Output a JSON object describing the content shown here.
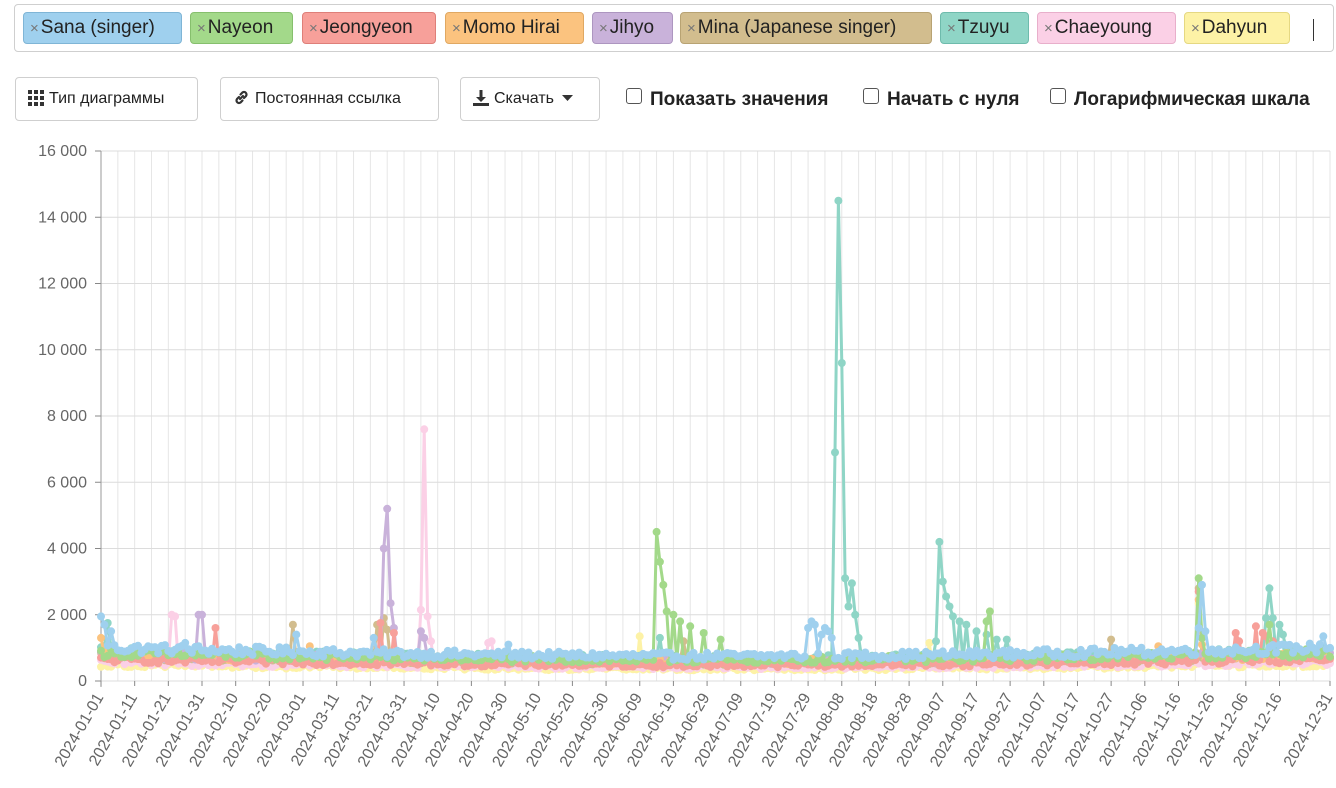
{
  "tags": [
    {
      "label": "Sana (singer)",
      "color": "#9fd0ee",
      "border": "#7fb5d6"
    },
    {
      "label": "Nayeon",
      "color": "#a3d98a",
      "border": "#86bf6d"
    },
    {
      "label": "Jeongyeon",
      "color": "#f7a09a",
      "border": "#de7f79"
    },
    {
      "label": "Momo Hirai",
      "color": "#fbc37f",
      "border": "#e0a862"
    },
    {
      "label": "Jihyo",
      "color": "#c9b2da",
      "border": "#ad96c0"
    },
    {
      "label": "Mina (Japanese singer)",
      "color": "#d2bd8e",
      "border": "#b8a373"
    },
    {
      "label": "Tzuyu",
      "color": "#8fd5c6",
      "border": "#6ebbac"
    },
    {
      "label": "Chaeyoung",
      "color": "#fbd0e6",
      "border": "#e8afcb"
    },
    {
      "label": "Dahyun",
      "color": "#fdf2a6",
      "border": "#e5d882"
    }
  ],
  "toolbar": {
    "chart_type": "Тип диаграммы",
    "permalink": "Постоянная ссылка",
    "download": "Скачать",
    "show_values": "Показать значения",
    "start_zero": "Начать с нуля",
    "log_scale": "Логарифмическая шкала"
  },
  "chart_data": {
    "type": "line",
    "ylim": [
      0,
      16000
    ],
    "yticks": [
      0,
      2000,
      4000,
      6000,
      8000,
      10000,
      12000,
      14000,
      16000
    ],
    "ytick_labels": [
      "0",
      "2 000",
      "4 000",
      "6 000",
      "8 000",
      "10 000",
      "12 000",
      "14 000",
      "16 000"
    ],
    "x_start": "2024-01-01",
    "x_end": "2024-12-31",
    "xtick_labels": [
      "2024-01-01",
      "2024-01-11",
      "2024-01-21",
      "2024-01-31",
      "2024-02-10",
      "2024-02-20",
      "2024-03-01",
      "2024-03-11",
      "2024-03-21",
      "2024-03-31",
      "2024-04-10",
      "2024-04-20",
      "2024-04-30",
      "2024-05-10",
      "2024-05-20",
      "2024-05-30",
      "2024-06-09",
      "2024-06-19",
      "2024-06-29",
      "2024-07-09",
      "2024-07-19",
      "2024-07-29",
      "2024-08-08",
      "2024-08-18",
      "2024-08-28",
      "2024-09-07",
      "2024-09-17",
      "2024-09-27",
      "2024-10-07",
      "2024-10-17",
      "2024-10-27",
      "2024-11-06",
      "2024-11-16",
      "2024-11-26",
      "2024-12-06",
      "2024-12-16",
      "2024-12-31"
    ],
    "series": [
      {
        "name": "Sana (singer)",
        "color": "#9fd0ee",
        "base": 1000,
        "peaks": [
          [
            "2024-01-01",
            1950
          ],
          [
            "2024-01-02",
            1700
          ],
          [
            "2024-01-04",
            1500
          ],
          [
            "2024-01-26",
            1150
          ],
          [
            "2024-02-28",
            1400
          ],
          [
            "2024-03-22",
            1300
          ],
          [
            "2024-05-01",
            1100
          ],
          [
            "2024-07-29",
            1600
          ],
          [
            "2024-07-30",
            1800
          ],
          [
            "2024-07-31",
            1700
          ],
          [
            "2024-08-02",
            1400
          ],
          [
            "2024-08-03",
            1600
          ],
          [
            "2024-08-04",
            1500
          ],
          [
            "2024-08-05",
            1300
          ],
          [
            "2024-11-22",
            1600
          ],
          [
            "2024-11-23",
            2900
          ],
          [
            "2024-11-24",
            1500
          ],
          [
            "2024-12-26",
            1000
          ],
          [
            "2024-12-29",
            1350
          ]
        ]
      },
      {
        "name": "Nayeon",
        "color": "#a3d98a",
        "base": 850,
        "peaks": [
          [
            "2024-06-14",
            4500
          ],
          [
            "2024-06-15",
            3600
          ],
          [
            "2024-06-16",
            2900
          ],
          [
            "2024-06-17",
            2100
          ],
          [
            "2024-06-19",
            2000
          ],
          [
            "2024-06-21",
            1800
          ],
          [
            "2024-06-24",
            1650
          ],
          [
            "2024-06-28",
            1450
          ],
          [
            "2024-07-03",
            1250
          ],
          [
            "2024-09-20",
            1800
          ],
          [
            "2024-09-21",
            2100
          ],
          [
            "2024-11-22",
            3100
          ],
          [
            "2024-11-23",
            1300
          ],
          [
            "2024-12-13",
            1700
          ]
        ]
      },
      {
        "name": "Jeongyeon",
        "color": "#f7a09a",
        "base": 650,
        "peaks": [
          [
            "2024-02-04",
            1600
          ],
          [
            "2024-03-24",
            1750
          ],
          [
            "2024-03-28",
            1450
          ],
          [
            "2024-11-22",
            2700
          ],
          [
            "2024-11-23",
            1300
          ],
          [
            "2024-12-03",
            1450
          ],
          [
            "2024-12-04",
            1200
          ],
          [
            "2024-12-09",
            1650
          ],
          [
            "2024-12-11",
            1450
          ],
          [
            "2024-12-12",
            1350
          ],
          [
            "2024-12-14",
            1200
          ]
        ]
      },
      {
        "name": "Momo Hirai",
        "color": "#fbc37f",
        "base": 780,
        "peaks": [
          [
            "2024-01-01",
            1300
          ],
          [
            "2024-03-03",
            1050
          ],
          [
            "2024-11-10",
            1050
          ],
          [
            "2024-11-22",
            2450
          ],
          [
            "2024-11-23",
            1100
          ]
        ]
      },
      {
        "name": "Jihyo",
        "color": "#c9b2da",
        "base": 800,
        "peaks": [
          [
            "2024-01-30",
            2000
          ],
          [
            "2024-01-31",
            2000
          ],
          [
            "2024-03-25",
            4000
          ],
          [
            "2024-03-26",
            5200
          ],
          [
            "2024-03-27",
            2350
          ],
          [
            "2024-03-28",
            1600
          ],
          [
            "2024-04-05",
            1500
          ],
          [
            "2024-04-06",
            1300
          ]
        ]
      },
      {
        "name": "Mina (Japanese singer)",
        "color": "#d2bd8e",
        "base": 760,
        "peaks": [
          [
            "2024-02-27",
            1700
          ],
          [
            "2024-03-25",
            1900
          ],
          [
            "2024-03-26",
            1550
          ],
          [
            "2024-03-23",
            1700
          ],
          [
            "2024-06-22",
            1200
          ],
          [
            "2024-10-27",
            1250
          ],
          [
            "2024-11-22",
            2800
          ]
        ]
      },
      {
        "name": "Tzuyu",
        "color": "#8fd5c6",
        "base": 900,
        "peaks": [
          [
            "2024-01-03",
            1750
          ],
          [
            "2024-06-15",
            1300
          ],
          [
            "2024-08-06",
            6900
          ],
          [
            "2024-08-07",
            14500
          ],
          [
            "2024-08-08",
            9600
          ],
          [
            "2024-08-09",
            3100
          ],
          [
            "2024-08-10",
            2250
          ],
          [
            "2024-08-11",
            2950
          ],
          [
            "2024-08-12",
            2000
          ],
          [
            "2024-08-13",
            1300
          ],
          [
            "2024-09-05",
            1200
          ],
          [
            "2024-09-06",
            4200
          ],
          [
            "2024-09-07",
            3000
          ],
          [
            "2024-09-08",
            2550
          ],
          [
            "2024-09-09",
            2250
          ],
          [
            "2024-09-10",
            1950
          ],
          [
            "2024-09-12",
            1800
          ],
          [
            "2024-09-14",
            1700
          ],
          [
            "2024-09-17",
            1500
          ],
          [
            "2024-09-20",
            1400
          ],
          [
            "2024-09-23",
            1250
          ],
          [
            "2024-09-26",
            1250
          ],
          [
            "2024-12-12",
            1900
          ],
          [
            "2024-12-13",
            2800
          ],
          [
            "2024-12-14",
            1900
          ],
          [
            "2024-12-16",
            1700
          ],
          [
            "2024-12-17",
            1400
          ]
        ]
      },
      {
        "name": "Chaeyoung",
        "color": "#fbd0e6",
        "base": 560,
        "peaks": [
          [
            "2024-01-22",
            2000
          ],
          [
            "2024-01-23",
            1950
          ],
          [
            "2024-04-05",
            2150
          ],
          [
            "2024-04-06",
            7600
          ],
          [
            "2024-04-07",
            1950
          ],
          [
            "2024-04-08",
            1200
          ],
          [
            "2024-04-25",
            1150
          ],
          [
            "2024-04-26",
            1200
          ]
        ]
      },
      {
        "name": "Dahyun",
        "color": "#fdf2a6",
        "base": 500,
        "peaks": [
          [
            "2024-06-09",
            1350
          ],
          [
            "2024-09-03",
            1150
          ],
          [
            "2024-11-22",
            2350
          ],
          [
            "2024-11-23",
            1100
          ]
        ]
      }
    ]
  }
}
